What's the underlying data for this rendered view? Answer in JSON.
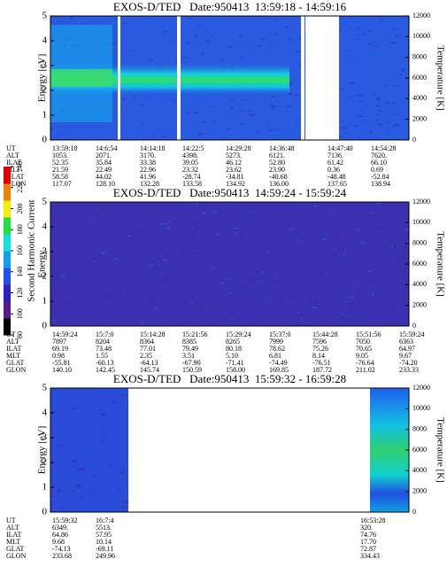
{
  "colorbar": {
    "label": "Second Harmonic Current",
    "lim": [
      80,
      240
    ],
    "ticks": [
      80,
      100,
      120,
      140,
      160,
      180,
      200,
      220,
      240
    ],
    "colors": [
      "#000000",
      "#5a1a8a",
      "#3020c0",
      "#2050f0",
      "#10a0f0",
      "#10e0e0",
      "#20e040",
      "#f0f000",
      "#f08000",
      "#e00000"
    ]
  },
  "chart_data": [
    {
      "type": "heatmap",
      "title": "EXOS-D/TED   Date:950413  13:59:18 - 14:59:16",
      "y_label": "Energy [eV]",
      "y2_label": "Temperature [K]",
      "ylim": [
        0,
        5
      ],
      "yticks": [
        0,
        1,
        2,
        3,
        4,
        5
      ],
      "y2lim": [
        0,
        12000
      ],
      "y2ticks": [
        0,
        2000,
        4000,
        6000,
        8000,
        10000,
        12000
      ],
      "ephemeris": {
        "labels": [
          "UT",
          "ALT",
          "ILAT",
          "MLT",
          "GLAT",
          "GLON"
        ],
        "columns": [
          [
            "13:59:18",
            "1053.",
            "52.35",
            "21.59",
            "58.58",
            "117.07"
          ],
          [
            "14:6:54",
            "2071.",
            "35.84",
            "22.49",
            "44.02",
            "128.10"
          ],
          [
            "14:14:18",
            "3170.",
            "33.38",
            "22.96",
            "41.96",
            "132.28"
          ],
          [
            "14:22:5",
            "4398.",
            "39.05",
            "23.32",
            "-28.74",
            "133.58"
          ],
          [
            "14:29:28",
            "5273.",
            "46.12",
            "23.62",
            "-34.81",
            "134.92"
          ],
          [
            "14:36:48",
            "6121.",
            "52.80",
            "23.90",
            "-40.68",
            "136.00"
          ],
          [
            "14:47:40",
            "7136.",
            "61.42",
            "0.36",
            "-48.48",
            "137.65"
          ],
          [
            "14:54:28",
            "7620.",
            "66.10",
            "0.69",
            "-52.84",
            "138.94"
          ]
        ]
      }
    },
    {
      "type": "heatmap",
      "title": "EXOS-D/TED   Date:950413  14:59:24 - 15:59:24",
      "y_label": "Energy",
      "y2_label": "Temperature [K]",
      "ylim": [
        0,
        5
      ],
      "yticks": [
        0,
        1,
        2,
        3,
        4,
        5
      ],
      "y2lim": [
        0,
        12000
      ],
      "y2ticks": [
        0,
        2000,
        4000,
        6000,
        8000,
        10000,
        12000
      ],
      "ephemeris": {
        "labels": [
          "UT",
          "ALT",
          "ILAT",
          "MLT",
          "GLAT",
          "GLON"
        ],
        "columns": [
          [
            "14:59:24",
            "7897",
            "69.19",
            "0.98",
            "-55.81",
            "140.10"
          ],
          [
            "15:7:0",
            "8204",
            "73.48",
            "1.55",
            "-60.13",
            "142.45"
          ],
          [
            "15:14:28",
            "8364",
            "77.01",
            "2.35",
            "-64.13",
            "145.74"
          ],
          [
            "15:21:56",
            "8385",
            "79.49",
            "3.51",
            "-67.90",
            "150.59"
          ],
          [
            "15:29:24",
            "8265",
            "80.18",
            "5.10",
            "-71.41",
            "158.00"
          ],
          [
            "15:37:0",
            "7999",
            "78.62",
            "6.81",
            "-74.49",
            "169.85"
          ],
          [
            "15:44:28",
            "7596",
            "75.26",
            "8.14",
            "-76.51",
            "187.72"
          ],
          [
            "15:51:56",
            "7050",
            "70.65",
            "9.05",
            "-76.64",
            "211.02"
          ],
          [
            "15:59:24",
            "6363",
            "64.97",
            "9.67",
            "-74.20",
            "233.33"
          ]
        ]
      }
    },
    {
      "type": "heatmap",
      "title": "EXOS-D/TED   Date:950413  15:59:32 - 16:59:28",
      "y_label": "Energy [eV]",
      "y2_label": "Temperature [K]",
      "ylim": [
        0,
        5
      ],
      "yticks": [
        0,
        1,
        2,
        3,
        4,
        5
      ],
      "y2lim": [
        0,
        12000
      ],
      "y2ticks": [
        0,
        2000,
        4000,
        6000,
        8000,
        10000,
        12000
      ],
      "ephemeris": {
        "labels": [
          "UT",
          "ALT",
          "ILAT",
          "MLT",
          "GLAT",
          "GLON"
        ],
        "columns": [
          [
            "15:59:32",
            "6349.",
            "64.86",
            "9.68",
            "-74.13",
            "233.68"
          ],
          [
            "16:7:4",
            "5513.",
            "57.95",
            "10.14",
            "-69.11",
            "249.96"
          ],
          [
            "16:53:28",
            "320.",
            "74.76",
            "17.70",
            "72.87",
            "334.43"
          ]
        ]
      }
    }
  ]
}
